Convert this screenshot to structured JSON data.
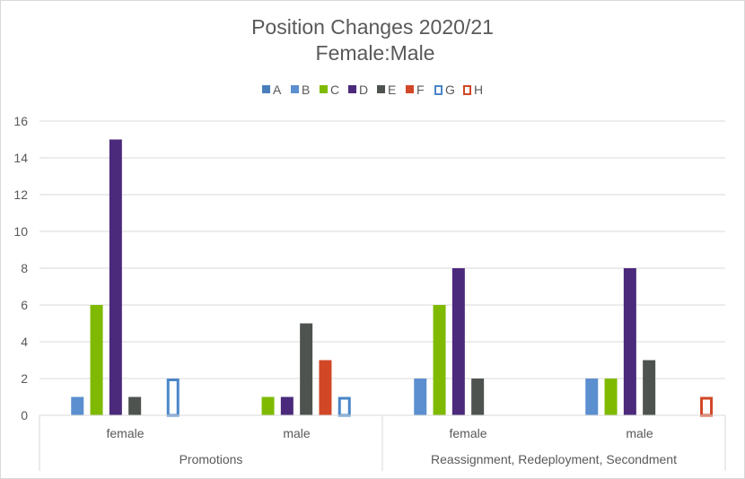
{
  "chart_data": {
    "type": "bar",
    "title": "Position Changes 2020/21",
    "subtitle": "Female:Male",
    "groups": [
      {
        "label": "Promotions",
        "categories": [
          "female",
          "male"
        ]
      },
      {
        "label": "Reassignment, Redeployment, Secondment",
        "categories": [
          "female",
          "male"
        ]
      }
    ],
    "categories": [
      "female",
      "male",
      "female",
      "male"
    ],
    "series": [
      {
        "name": "A",
        "color": "#4a7ebb",
        "style": "solid",
        "values": [
          0,
          0,
          0,
          0
        ]
      },
      {
        "name": "B",
        "color": "#5b8fd0",
        "style": "solid",
        "values": [
          1,
          0,
          2,
          2
        ]
      },
      {
        "name": "C",
        "color": "#7fba00",
        "style": "solid",
        "values": [
          6,
          1,
          6,
          2
        ]
      },
      {
        "name": "D",
        "color": "#4b2a7b",
        "style": "solid",
        "values": [
          15,
          1,
          8,
          8
        ]
      },
      {
        "name": "E",
        "color": "#4f534f",
        "style": "solid",
        "values": [
          1,
          5,
          2,
          3
        ]
      },
      {
        "name": "F",
        "color": "#d24726",
        "style": "solid",
        "values": [
          0,
          3,
          0,
          0
        ]
      },
      {
        "name": "G",
        "color": "#4a86c8",
        "style": "outline",
        "values": [
          2,
          1,
          0,
          0
        ]
      },
      {
        "name": "H",
        "color": "#d24726",
        "style": "outline",
        "values": [
          0,
          0,
          0,
          1
        ]
      }
    ],
    "y_ticks": [
      0,
      2,
      4,
      6,
      8,
      10,
      12,
      14,
      16
    ],
    "ylim": [
      0,
      16
    ],
    "grid": true,
    "legend_position": "top"
  }
}
